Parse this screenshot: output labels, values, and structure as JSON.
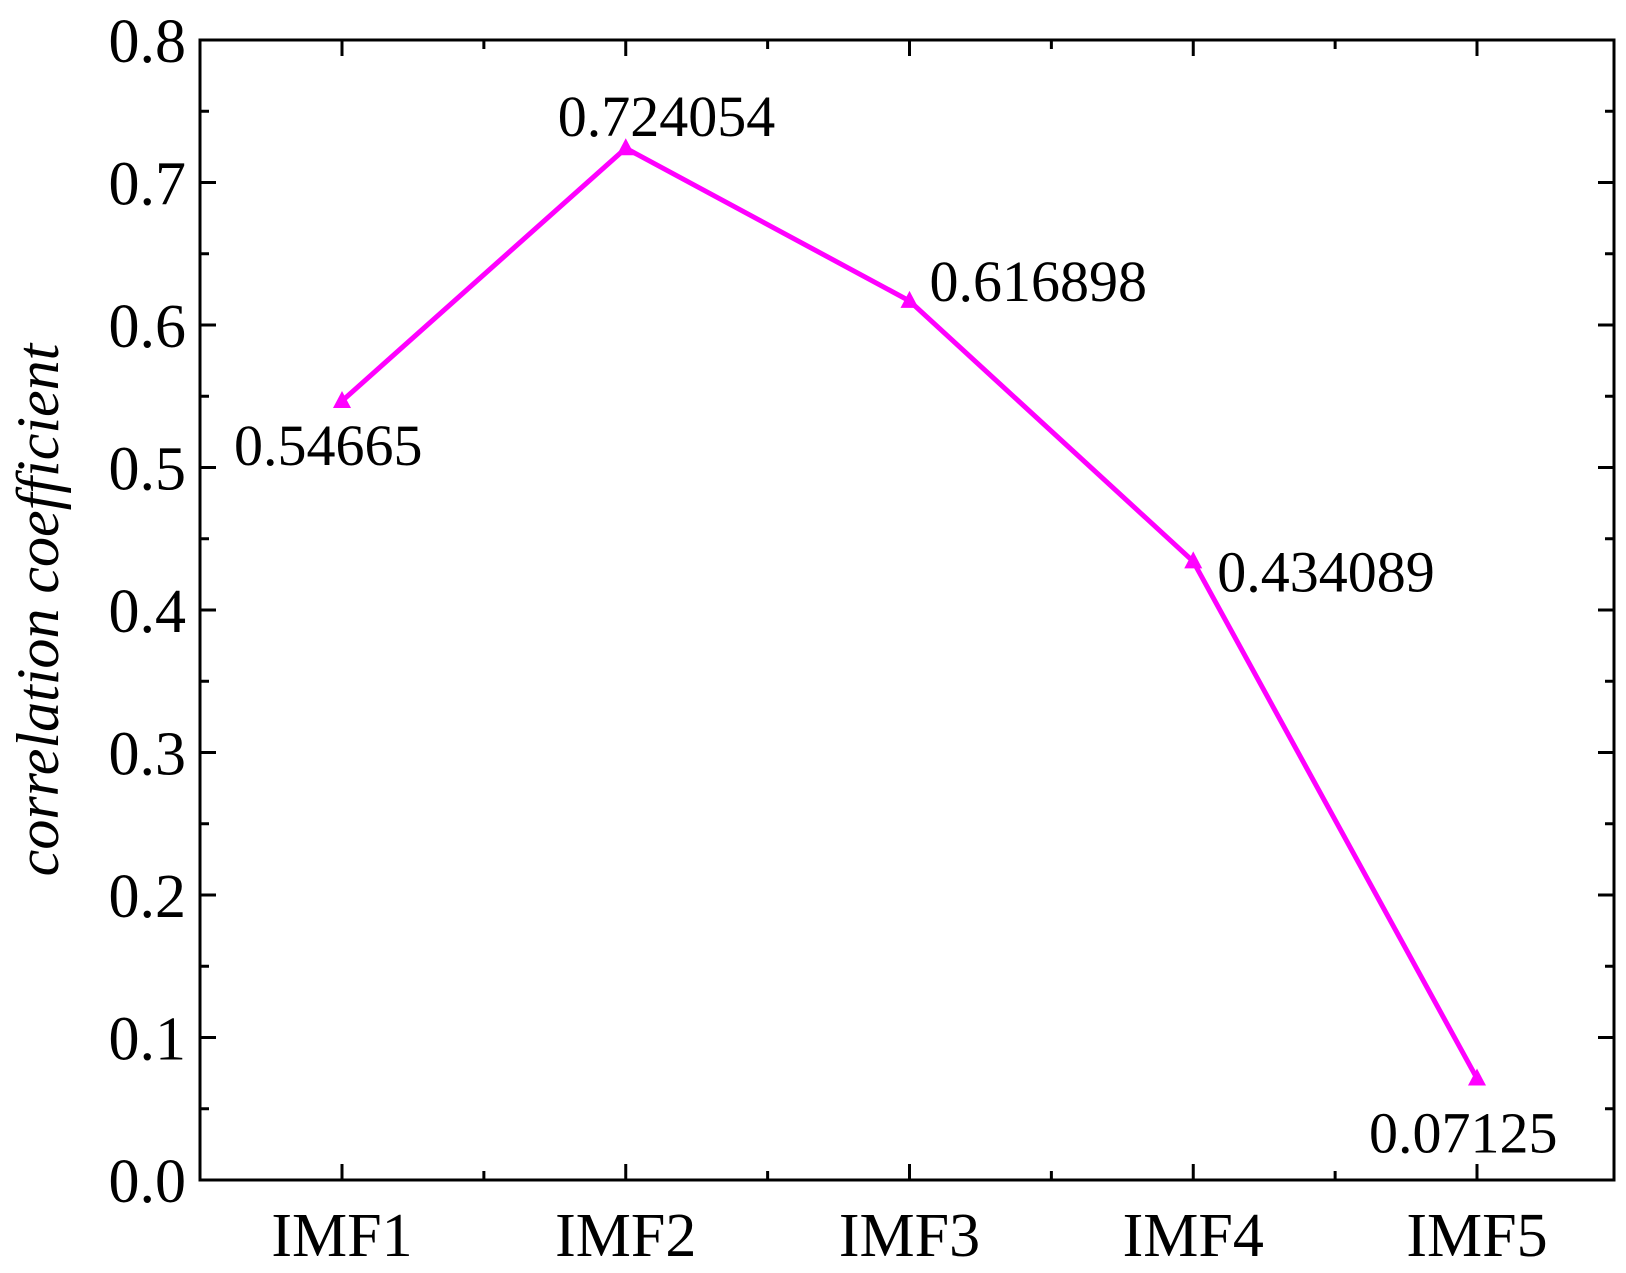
{
  "chart_data": {
    "type": "line",
    "categories": [
      "IMF1",
      "IMF2",
      "IMF3",
      "IMF4",
      "IMF5"
    ],
    "series": [
      {
        "values": [
          0.54665,
          0.724054,
          0.616898,
          0.434089,
          0.07125
        ],
        "data_labels": [
          "0.54665",
          "0.724054",
          "0.616898",
          "0.434089",
          "0.07125"
        ],
        "color": "#ff00ff",
        "marker": "triangle-up"
      }
    ],
    "title": "",
    "xlabel": "",
    "ylabel": "correlation coefficient",
    "ylim": [
      0,
      0.8
    ],
    "yticks": [
      "0.0",
      "0.1",
      "0.2",
      "0.3",
      "0.4",
      "0.5",
      "0.6",
      "0.7",
      "0.8"
    ],
    "grid": false,
    "legend": "none"
  }
}
